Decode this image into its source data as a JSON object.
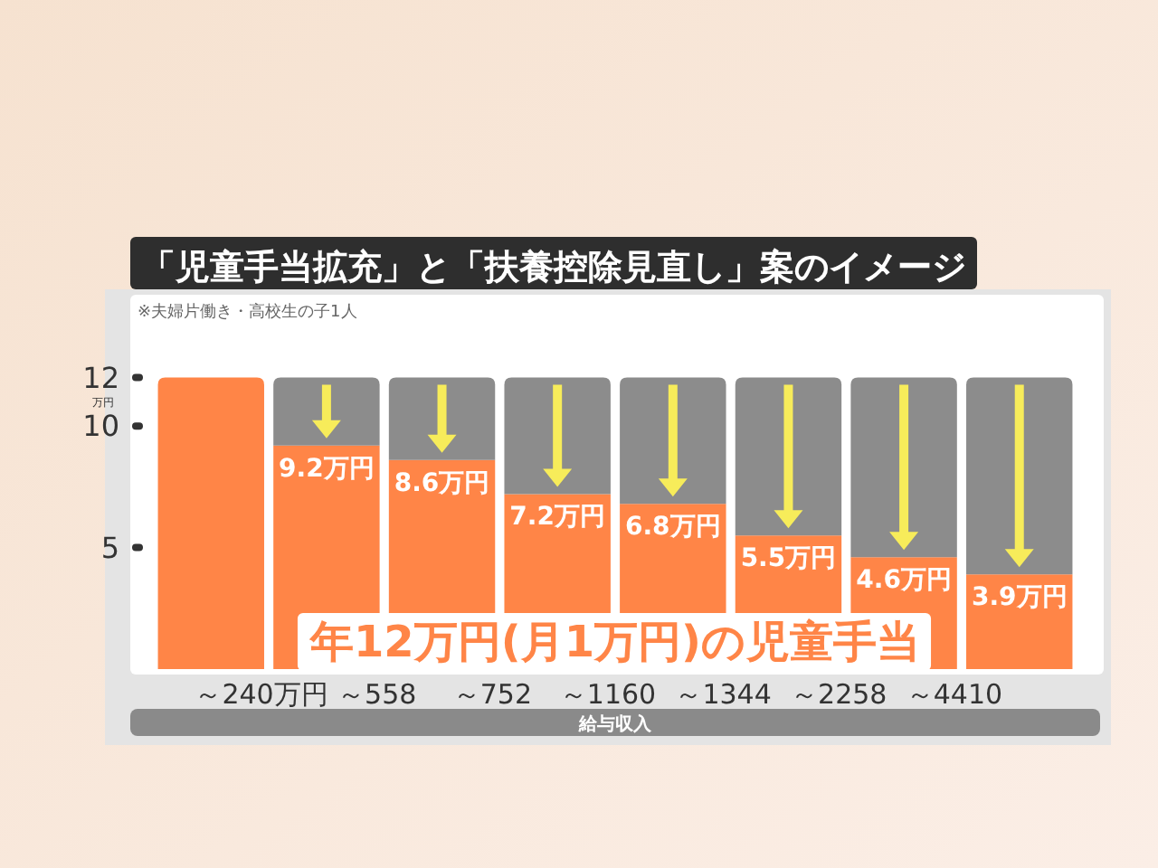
{
  "chart_data": {
    "type": "bar",
    "title": "「児童手当拡充」と「扶養控除見直し」案のイメージ",
    "xlabel": "給与収入",
    "annotations": [
      "※夫婦片働き・高校生の子1人",
      "年12万円(月1万円)の児童手当"
    ],
    "categories": [
      "～240万円",
      "～558",
      "～752",
      "～1160",
      "～1344",
      "～2258",
      "～4410",
      null
    ],
    "stacked": true,
    "series": [
      {
        "color": "#ff8547",
        "values": [
          12,
          9.2,
          8.6,
          7.2,
          6.8,
          5.5,
          4.6,
          3.9
        ],
        "value_labels": [
          null,
          "9.2万円",
          "8.6万円",
          "7.2万円",
          "6.8万円",
          "5.5万円",
          "4.6万円",
          "3.9万円"
        ]
      },
      {
        "color": "#8c8c8c",
        "values": [
          null,
          2.8,
          3.4,
          4.8,
          5.2,
          6.5,
          7.4,
          8.1
        ]
      }
    ],
    "ylabel": "万円",
    "ylim": [
      0,
      15.4
    ],
    "yticks": [
      5,
      10,
      12
    ]
  }
}
